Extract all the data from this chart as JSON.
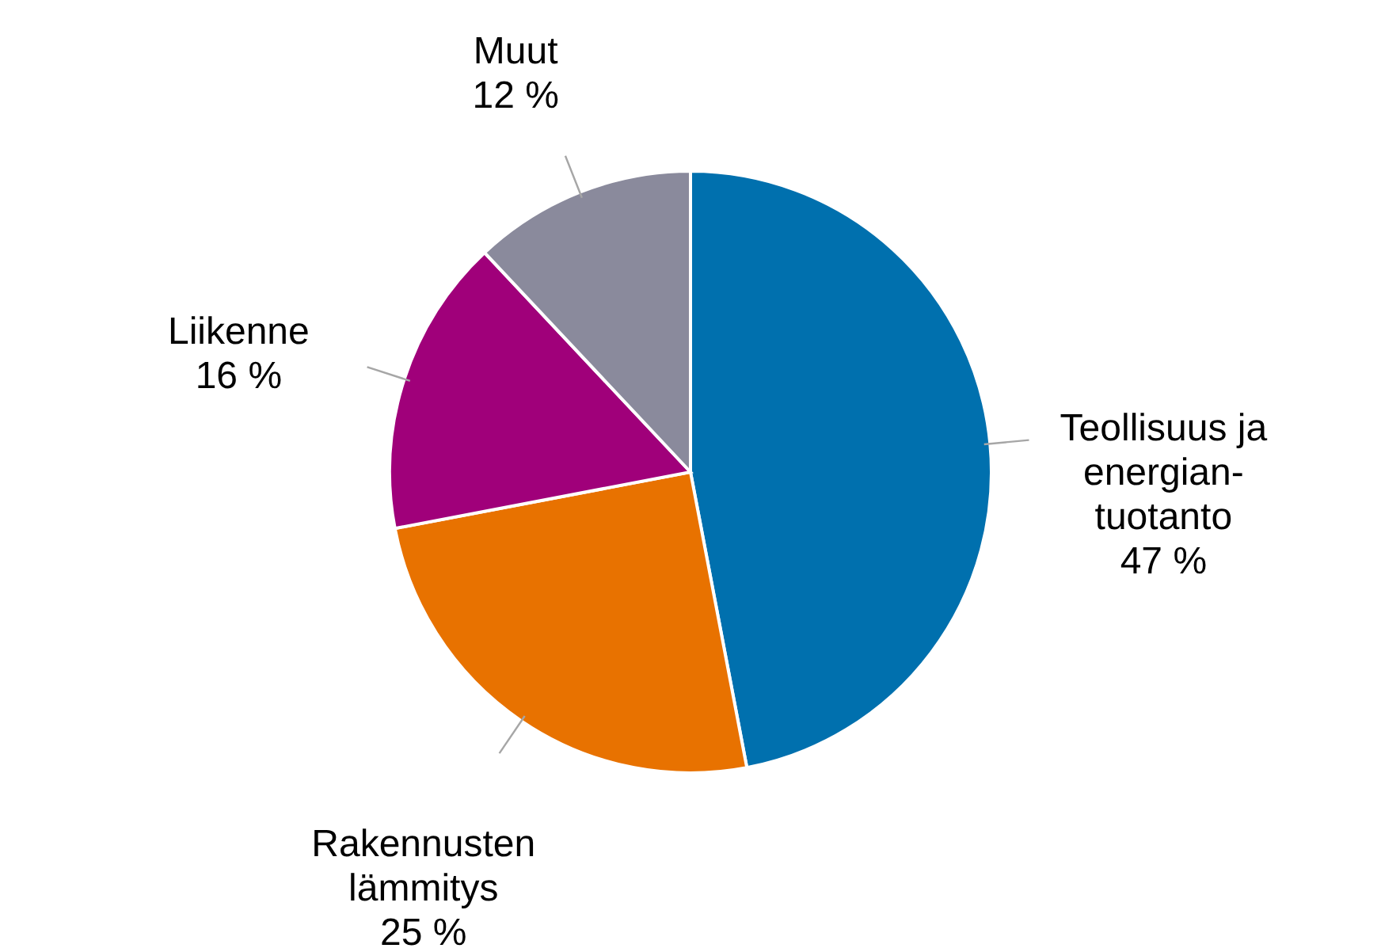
{
  "chart_data": {
    "type": "pie",
    "categories": [
      "Teollisuus ja\nenergian-\ntuotanto",
      "Rakennusten\nlämmitys",
      "Liikenne",
      "Muut"
    ],
    "values": [
      47,
      25,
      16,
      12
    ],
    "colors": [
      "#0070ae",
      "#e87200",
      "#a0007a",
      "#8a8a9c"
    ],
    "value_labels": [
      "47 %",
      "25 %",
      "16 %",
      "12 %"
    ],
    "legend": false
  }
}
